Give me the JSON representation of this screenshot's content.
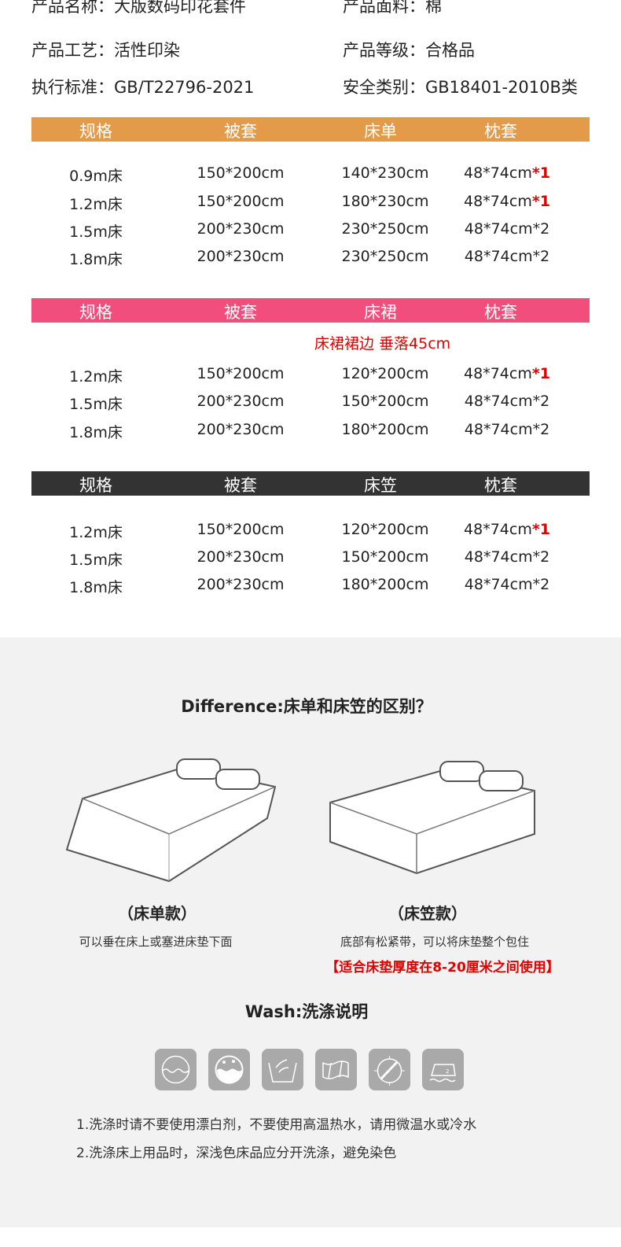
{
  "info": [
    {
      "label": "产品名称：",
      "value": "大版数码印花套件"
    },
    {
      "label": "产品面料：",
      "value": "棉"
    },
    {
      "label": "产品工艺：",
      "value": "活性印染"
    },
    {
      "label": "产品等级：",
      "value": "合格品"
    },
    {
      "label": "执行标准：",
      "value": "GB/T22796-2021"
    },
    {
      "label": "安全类别：",
      "value": "GB18401-2010B类"
    }
  ],
  "tables": [
    {
      "color": "#e39a49",
      "headers": [
        "规格",
        "被套",
        "床单",
        "枕套"
      ],
      "note": "",
      "rows": [
        [
          "0.9m床",
          "150*200cm",
          "140*230cm",
          "48*74cm",
          "*1"
        ],
        [
          "1.2m床",
          "150*200cm",
          "180*230cm",
          "48*74cm",
          "*1"
        ],
        [
          "1.5m床",
          "200*230cm",
          "230*250cm",
          "48*74cm*2",
          ""
        ],
        [
          "1.8m床",
          "200*230cm",
          "230*250cm",
          "48*74cm*2",
          ""
        ]
      ]
    },
    {
      "color": "#f24e7d",
      "headers": [
        "规格",
        "被套",
        "床裙",
        "枕套"
      ],
      "note": "床裙裙边 垂落45cm",
      "rows": [
        [
          "1.2m床",
          "150*200cm",
          "120*200cm",
          "48*74cm",
          "*1"
        ],
        [
          "1.5m床",
          "200*230cm",
          "150*200cm",
          "48*74cm*2",
          ""
        ],
        [
          "1.8m床",
          "200*230cm",
          "180*200cm",
          "48*74cm*2",
          ""
        ]
      ]
    },
    {
      "color": "#333333",
      "headers": [
        "规格",
        "被套",
        "床笠",
        "枕套"
      ],
      "note": "",
      "rows": [
        [
          "1.2m床",
          "150*200cm",
          "120*200cm",
          "48*74cm",
          "*1"
        ],
        [
          "1.5m床",
          "200*230cm",
          "150*200cm",
          "48*74cm*2",
          ""
        ],
        [
          "1.8m床",
          "200*230cm",
          "180*200cm",
          "48*74cm*2",
          ""
        ]
      ]
    }
  ],
  "difference": {
    "title": "Difference:床单和床笠的区别？",
    "sheet": {
      "label": "（床单款）",
      "desc": "可以垂在床上或塞进床垫下面"
    },
    "fitted": {
      "label": "（床笠款）",
      "desc": "底部有松紧带，可以将床垫整个包住",
      "note": "【适合床垫厚度在8-20厘米之间使用】"
    }
  },
  "wash": {
    "title": "Wash:洗涤说明",
    "icons": [
      "wash-gentle-icon",
      "wash-water-icon",
      "hand-wash-icon",
      "no-wring-icon",
      "tumble-dry-icon",
      "iron-icon"
    ],
    "lines": [
      "1.洗涤时请不要使用漂白剂，不要使用高温热水，请用微温水或冷水",
      "2.洗涤床上用品时，深浅色床品应分开洗涤，避免染色"
    ]
  }
}
